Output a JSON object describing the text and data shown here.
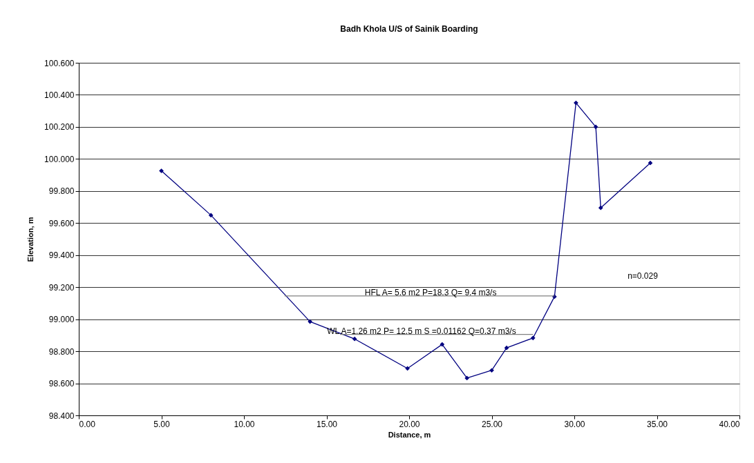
{
  "chart_data": {
    "type": "line",
    "title": "Badh Khola U/S of Sainik Boarding",
    "xlabel": "Distance, m",
    "ylabel": "Elevation, m",
    "series": [
      {
        "color": "#000080",
        "marker": "diamond",
        "x": [
          5.0,
          8.0,
          14.0,
          16.7,
          19.9,
          22.0,
          23.5,
          25.0,
          25.9,
          27.5,
          28.8,
          30.1,
          31.3,
          31.6,
          34.6
        ],
        "values": [
          99.926,
          99.649,
          98.985,
          98.877,
          98.693,
          98.843,
          98.633,
          98.681,
          98.821,
          98.883,
          99.141,
          100.35,
          100.2,
          99.695,
          99.975
        ]
      },
      {
        "color": "#808080",
        "marker": "none",
        "x": [
          12.46,
          28.8
        ],
        "values": [
          99.145,
          99.145
        ]
      },
      {
        "color": "#808080",
        "marker": "none",
        "x": [
          15.82,
          27.5
        ],
        "values": [
          98.905,
          98.905
        ]
      }
    ],
    "annotations": [
      {
        "text": "HFL    A= 5.6 m2   P=18.3  Q= 9.4 m3/s",
        "x": 21.3,
        "y": 99.145
      },
      {
        "text": "WL  A=1.26 m2   P= 12.5 m S =0.01162 Q=0.37 m3/s",
        "x": 20.75,
        "y": 98.905
      },
      "n=0.029"
    ],
    "xlim": [
      0,
      40
    ],
    "ylim": [
      98.4,
      100.6
    ],
    "xticks": [
      {
        "value": 0,
        "label": "0.00"
      },
      {
        "value": 5,
        "label": "5.00"
      },
      {
        "value": 10,
        "label": "10.00"
      },
      {
        "value": 15,
        "label": "15.00"
      },
      {
        "value": 20,
        "label": "20.00"
      },
      {
        "value": 25,
        "label": "25.00"
      },
      {
        "value": 30,
        "label": "30.00"
      },
      {
        "value": 35,
        "label": "35.00"
      },
      {
        "value": 40,
        "label": "40.00"
      }
    ],
    "yticks": [
      {
        "value": 98.4,
        "label": "98.400"
      },
      {
        "value": 98.6,
        "label": "98.600"
      },
      {
        "value": 98.8,
        "label": "98.800"
      },
      {
        "value": 99.0,
        "label": "99.000"
      },
      {
        "value": 99.2,
        "label": "99.200"
      },
      {
        "value": 99.4,
        "label": "99.400"
      },
      {
        "value": 99.6,
        "label": "99.600"
      },
      {
        "value": 99.8,
        "label": "99.800"
      },
      {
        "value": 100.0,
        "label": "100.000"
      },
      {
        "value": 100.2,
        "label": "100.200"
      },
      {
        "value": 100.4,
        "label": "100.400"
      },
      {
        "value": 100.6,
        "label": "100.600"
      }
    ],
    "grid": "y"
  }
}
